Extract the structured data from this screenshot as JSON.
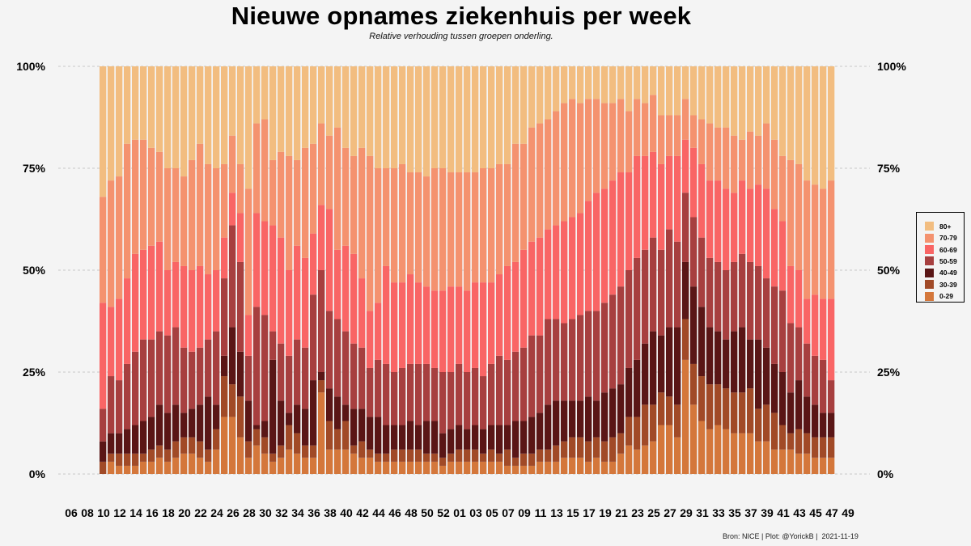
{
  "title": "Nieuwe opnames ziekenhuis per week",
  "subtitle": "Relative verhouding tussen groepen onderling.",
  "caption": "Bron: NICE | Plot: @YorickB |  2021-11-19",
  "colors": {
    "background": "#f4f4f4",
    "0-29": "#d4773b",
    "30-39": "#a14a27",
    "40-49": "#5a1616",
    "50-59": "#a73f3f",
    "60-69": "#f96565",
    "70-79": "#f4926f",
    "80+": "#f2bd80"
  },
  "chart_data": {
    "type": "bar",
    "stacked": true,
    "normalized": true,
    "title": "Nieuwe opnames ziekenhuis per week",
    "subtitle": "Relative verhouding tussen groepen onderling.",
    "xlabel": "",
    "ylabel": "",
    "ylim": [
      0,
      100
    ],
    "y_ticks": [
      "0%",
      "25%",
      "50%",
      "75%",
      "100%"
    ],
    "y_axis_both_sides": true,
    "grid": "horizontal dashed",
    "legend_position": "right",
    "x_tick_labels": [
      "06",
      "08",
      "10",
      "12",
      "14",
      "16",
      "18",
      "20",
      "22",
      "24",
      "26",
      "28",
      "30",
      "32",
      "34",
      "36",
      "38",
      "40",
      "42",
      "44",
      "46",
      "48",
      "50",
      "52",
      "01",
      "03",
      "05",
      "07",
      "09",
      "11",
      "13",
      "15",
      "17",
      "19",
      "21",
      "23",
      "25",
      "27",
      "29",
      "31",
      "33",
      "35",
      "37",
      "39",
      "41",
      "43",
      "45",
      "47",
      "49"
    ],
    "cumulative_upper_bounds_order": [
      "0-29",
      "30-39",
      "40-49",
      "50-59",
      "60-69",
      "70-79",
      "80+"
    ],
    "series": [
      {
        "name": "80+",
        "color": "#f2bd80"
      },
      {
        "name": "70-79",
        "color": "#f4926f"
      },
      {
        "name": "60-69",
        "color": "#f96565"
      },
      {
        "name": "50-59",
        "color": "#a73f3f"
      },
      {
        "name": "40-49",
        "color": "#5a1616"
      },
      {
        "name": "30-39",
        "color": "#a14a27"
      },
      {
        "name": "0-29",
        "color": "#d4773b"
      }
    ],
    "weeks": [
      "10",
      "11",
      "12",
      "13",
      "14",
      "15",
      "16",
      "17",
      "18",
      "19",
      "20",
      "21",
      "22",
      "23",
      "24",
      "25",
      "26",
      "27",
      "28",
      "29",
      "30",
      "31",
      "32",
      "33",
      "34",
      "35",
      "36",
      "37",
      "38",
      "39",
      "40",
      "41",
      "42",
      "43",
      "44",
      "45",
      "46",
      "47",
      "48",
      "49",
      "50",
      "51",
      "52",
      "53",
      "01",
      "02",
      "03",
      "04",
      "05",
      "06",
      "07",
      "08",
      "09",
      "10",
      "11",
      "12",
      "13",
      "14",
      "15",
      "16",
      "17",
      "18",
      "19",
      "20",
      "21",
      "22",
      "23",
      "24",
      "25",
      "26",
      "27",
      "28",
      "29",
      "30",
      "31",
      "32",
      "33",
      "34",
      "35",
      "36",
      "37",
      "38",
      "39",
      "40",
      "41",
      "42",
      "43",
      "44",
      "45",
      "46"
    ],
    "cumulative": [
      [
        0,
        3,
        8,
        16,
        42,
        68
      ],
      [
        3,
        5,
        10,
        24,
        41,
        72
      ],
      [
        2,
        5,
        10,
        23,
        43,
        73
      ],
      [
        2,
        5,
        11,
        27,
        48,
        81
      ],
      [
        2,
        5,
        12,
        30,
        54,
        82
      ],
      [
        3,
        5,
        13,
        33,
        55,
        82
      ],
      [
        3,
        6,
        14,
        33,
        56,
        80
      ],
      [
        4,
        7,
        17,
        35,
        57,
        79
      ],
      [
        3,
        6,
        15,
        34,
        50,
        75
      ],
      [
        4,
        8,
        17,
        36,
        52,
        75
      ],
      [
        5,
        9,
        15,
        31,
        51,
        73
      ],
      [
        5,
        9,
        16,
        30,
        50,
        77
      ],
      [
        4,
        8,
        17,
        31,
        51,
        81
      ],
      [
        3,
        6,
        19,
        33,
        49,
        76
      ],
      [
        6,
        11,
        17,
        35,
        50,
        75
      ],
      [
        14,
        24,
        29,
        48,
        58,
        76
      ],
      [
        14,
        22,
        36,
        61,
        69,
        83
      ],
      [
        9,
        19,
        30,
        52,
        64,
        76
      ],
      [
        4,
        8,
        18,
        29,
        39,
        70
      ],
      [
        7,
        11,
        12,
        41,
        64,
        86
      ],
      [
        5,
        9,
        13,
        39,
        62,
        87
      ],
      [
        3,
        5,
        28,
        35,
        61,
        77
      ],
      [
        4,
        7,
        18,
        32,
        58,
        79
      ],
      [
        6,
        12,
        15,
        29,
        50,
        78
      ],
      [
        5,
        10,
        17,
        33,
        56,
        77
      ],
      [
        4,
        7,
        16,
        31,
        53,
        80
      ],
      [
        4,
        7,
        23,
        44,
        59,
        81
      ],
      [
        20,
        23,
        25,
        50,
        66,
        86
      ],
      [
        6,
        13,
        21,
        40,
        65,
        83
      ],
      [
        6,
        11,
        19,
        38,
        55,
        85
      ],
      [
        6,
        13,
        17,
        35,
        56,
        80
      ],
      [
        5,
        7,
        16,
        32,
        54,
        78
      ],
      [
        4,
        8,
        16,
        31,
        48,
        80
      ],
      [
        4,
        6,
        14,
        26,
        40,
        78
      ],
      [
        3,
        5,
        14,
        28,
        42,
        75
      ],
      [
        3,
        5,
        12,
        27,
        51,
        75
      ],
      [
        3,
        6,
        12,
        25,
        47,
        75
      ],
      [
        3,
        6,
        12,
        26,
        47,
        76
      ],
      [
        3,
        6,
        13,
        27,
        49,
        74
      ],
      [
        3,
        6,
        12,
        27,
        47,
        74
      ],
      [
        3,
        5,
        13,
        27,
        46,
        73
      ],
      [
        3,
        5,
        13,
        26,
        45,
        75
      ],
      [
        2,
        4,
        10,
        25,
        45,
        75
      ],
      [
        3,
        5,
        11,
        25,
        46,
        74
      ],
      [
        3,
        6,
        12,
        27,
        46,
        74
      ],
      [
        3,
        6,
        11,
        25,
        45,
        74
      ],
      [
        3,
        6,
        12,
        26,
        47,
        74
      ],
      [
        3,
        5,
        11,
        24,
        47,
        75
      ],
      [
        3,
        6,
        12,
        27,
        47,
        75
      ],
      [
        3,
        5,
        12,
        29,
        49,
        76
      ],
      [
        2,
        6,
        12,
        28,
        51,
        76
      ],
      [
        2,
        4,
        13,
        30,
        52,
        81
      ],
      [
        2,
        5,
        13,
        31,
        55,
        81
      ],
      [
        2,
        5,
        14,
        34,
        57,
        85
      ],
      [
        3,
        6,
        15,
        34,
        58,
        86
      ],
      [
        3,
        6,
        17,
        38,
        60,
        87
      ],
      [
        3,
        7,
        18,
        38,
        61,
        89
      ],
      [
        4,
        8,
        18,
        37,
        62,
        91
      ],
      [
        4,
        9,
        18,
        38,
        63,
        92
      ],
      [
        4,
        9,
        18,
        39,
        64,
        91
      ],
      [
        3,
        8,
        19,
        40,
        67,
        92
      ],
      [
        4,
        9,
        18,
        40,
        69,
        92
      ],
      [
        3,
        8,
        20,
        42,
        70,
        91
      ],
      [
        3,
        9,
        21,
        44,
        72,
        91
      ],
      [
        5,
        10,
        22,
        46,
        74,
        92
      ],
      [
        7,
        14,
        26,
        50,
        74,
        89
      ],
      [
        6,
        14,
        28,
        53,
        78,
        92
      ],
      [
        7,
        17,
        32,
        55,
        78,
        91
      ],
      [
        8,
        17,
        35,
        58,
        79,
        93
      ],
      [
        12,
        20,
        34,
        55,
        76,
        88
      ],
      [
        12,
        19,
        36,
        60,
        78,
        88
      ],
      [
        9,
        17,
        36,
        57,
        78,
        88
      ],
      [
        28,
        38,
        52,
        69,
        82,
        92
      ],
      [
        17,
        27,
        46,
        63,
        80,
        88
      ],
      [
        13,
        24,
        41,
        58,
        76,
        87
      ],
      [
        11,
        22,
        36,
        53,
        72,
        86
      ],
      [
        12,
        22,
        35,
        52,
        72,
        85
      ],
      [
        11,
        21,
        33,
        50,
        70,
        85
      ],
      [
        10,
        20,
        35,
        52,
        69,
        83
      ],
      [
        10,
        20,
        36,
        54,
        72,
        82
      ],
      [
        10,
        21,
        33,
        52,
        70,
        84
      ],
      [
        8,
        16,
        33,
        51,
        71,
        83
      ],
      [
        8,
        17,
        31,
        48,
        70,
        86
      ],
      [
        6,
        15,
        27,
        46,
        65,
        82
      ],
      [
        6,
        12,
        25,
        45,
        62,
        78
      ],
      [
        6,
        10,
        20,
        37,
        51,
        77
      ],
      [
        5,
        11,
        23,
        36,
        50,
        76
      ],
      [
        5,
        10,
        19,
        32,
        43,
        72
      ],
      [
        4,
        9,
        17,
        29,
        44,
        71
      ],
      [
        4,
        9,
        15,
        28,
        43,
        70
      ],
      [
        4,
        9,
        15,
        23,
        43,
        72
      ]
    ]
  }
}
